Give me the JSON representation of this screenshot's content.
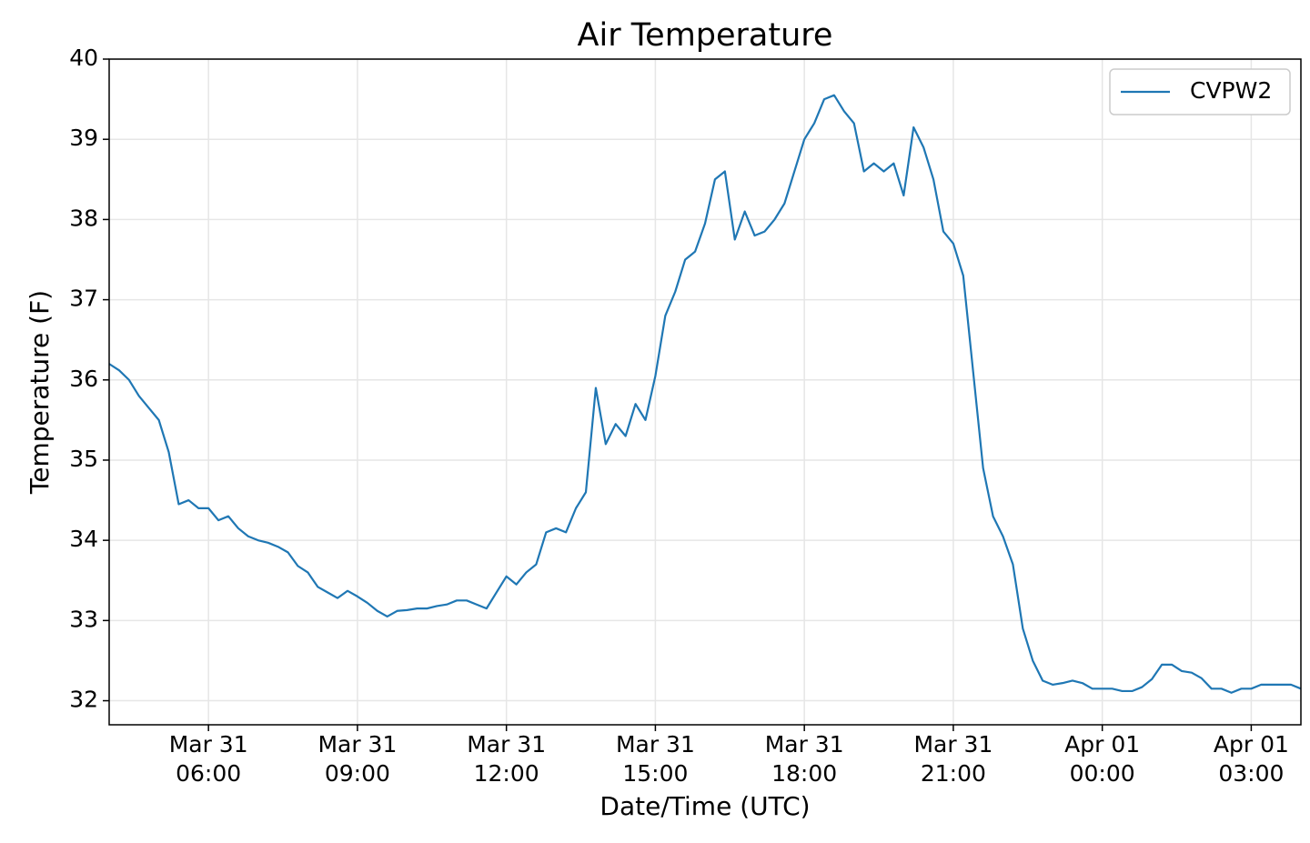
{
  "chart_data": {
    "type": "line",
    "title": "Air Temperature",
    "x_label": "Date/Time (UTC)",
    "y_label": "Temperature (F)",
    "xlim": [
      4,
      28
    ],
    "ylim": [
      31.7,
      40
    ],
    "xticks": [
      {
        "value": 6,
        "label": "Mar 31\n06:00"
      },
      {
        "value": 9,
        "label": "Mar 31\n09:00"
      },
      {
        "value": 12,
        "label": "Mar 31\n12:00"
      },
      {
        "value": 15,
        "label": "Mar 31\n15:00"
      },
      {
        "value": 18,
        "label": "Mar 31\n18:00"
      },
      {
        "value": 21,
        "label": "Mar 31\n21:00"
      },
      {
        "value": 24,
        "label": "Apr 01\n00:00"
      },
      {
        "value": 27,
        "label": "Apr 01\n03:00"
      }
    ],
    "yticks": [
      32,
      33,
      34,
      35,
      36,
      37,
      38,
      39,
      40
    ],
    "grid": true,
    "legend": "upper right",
    "x": [
      4.0,
      4.2,
      4.4,
      4.6,
      4.8,
      5.0,
      5.2,
      5.4,
      5.6,
      5.8,
      6.0,
      6.2,
      6.4,
      6.6,
      6.8,
      7.0,
      7.2,
      7.4,
      7.6,
      7.8,
      8.0,
      8.2,
      8.4,
      8.6,
      8.8,
      9.0,
      9.2,
      9.4,
      9.6,
      9.8,
      10.0,
      10.2,
      10.4,
      10.6,
      10.8,
      11.0,
      11.2,
      11.4,
      11.6,
      11.8,
      12.0,
      12.2,
      12.4,
      12.6,
      12.8,
      13.0,
      13.2,
      13.4,
      13.6,
      13.8,
      14.0,
      14.2,
      14.4,
      14.6,
      14.8,
      15.0,
      15.2,
      15.4,
      15.6,
      15.8,
      16.0,
      16.2,
      16.4,
      16.6,
      16.8,
      17.0,
      17.2,
      17.4,
      17.6,
      17.8,
      18.0,
      18.2,
      18.4,
      18.6,
      18.8,
      19.0,
      19.2,
      19.4,
      19.6,
      19.8,
      20.0,
      20.2,
      20.4,
      20.6,
      20.8,
      21.0,
      21.2,
      21.4,
      21.6,
      21.8,
      22.0,
      22.2,
      22.4,
      22.6,
      22.8,
      23.0,
      23.2,
      23.4,
      23.6,
      23.8,
      24.0,
      24.2,
      24.4,
      24.6,
      24.8,
      25.0,
      25.2,
      25.4,
      25.6,
      25.8,
      26.0,
      26.2,
      26.4,
      26.6,
      26.8,
      27.0,
      27.2,
      27.4,
      27.6,
      27.8,
      28.0
    ],
    "series": [
      {
        "name": "CVPW2",
        "color": "#1f77b4",
        "values": [
          36.2,
          36.12,
          36.0,
          35.8,
          35.65,
          35.5,
          35.1,
          34.45,
          34.5,
          34.4,
          34.4,
          34.25,
          34.3,
          34.15,
          34.05,
          34.0,
          33.97,
          33.92,
          33.85,
          33.68,
          33.6,
          33.42,
          33.35,
          33.28,
          33.37,
          33.3,
          33.22,
          33.12,
          33.05,
          33.12,
          33.13,
          33.15,
          33.15,
          33.18,
          33.2,
          33.25,
          33.25,
          33.2,
          33.15,
          33.35,
          33.55,
          33.45,
          33.6,
          33.7,
          34.1,
          34.15,
          34.1,
          34.4,
          34.6,
          35.9,
          35.2,
          35.45,
          35.3,
          35.7,
          35.5,
          36.05,
          36.8,
          37.1,
          37.5,
          37.6,
          37.95,
          38.5,
          38.6,
          37.75,
          38.1,
          37.8,
          37.85,
          38.0,
          38.2,
          38.6,
          39.0,
          39.2,
          39.5,
          39.55,
          39.35,
          39.2,
          38.6,
          38.7,
          38.6,
          38.7,
          38.3,
          39.15,
          38.9,
          38.5,
          37.85,
          37.7,
          37.3,
          36.1,
          34.9,
          34.3,
          34.05,
          33.7,
          32.9,
          32.5,
          32.25,
          32.2,
          32.22,
          32.25,
          32.22,
          32.15,
          32.15,
          32.15,
          32.12,
          32.12,
          32.17,
          32.27,
          32.45,
          32.45,
          32.37,
          32.35,
          32.28,
          32.15,
          32.15,
          32.1,
          32.15,
          32.15,
          32.2,
          32.2,
          32.2,
          32.2,
          32.15
        ]
      }
    ]
  }
}
